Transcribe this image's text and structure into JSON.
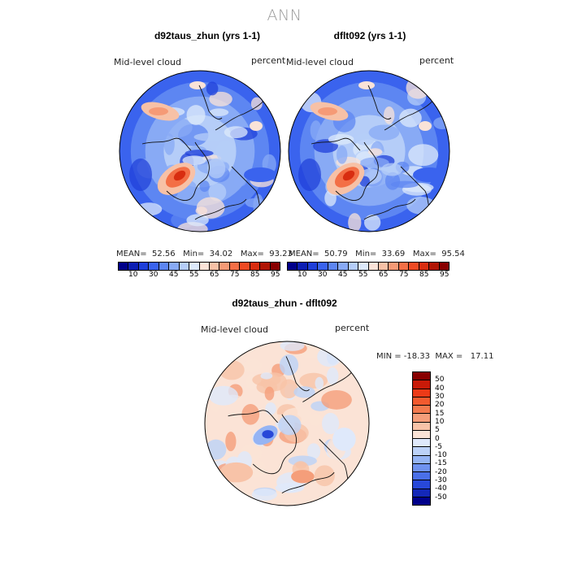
{
  "main_title": "ANN",
  "panels": [
    {
      "title": "d92taus_zhun (yrs 1-1)",
      "field": "Mid-level cloud",
      "units": "percent",
      "stats_text": "MEAN=  52.56   Min=  34.02   Max=  93.23",
      "mean": 52.56,
      "min": 34.02,
      "max": 93.23
    },
    {
      "title": "dflt092 (yrs 1-1)",
      "field": "Mid-level cloud",
      "units": "percent",
      "stats_text": "MEAN=  50.79   Min=  33.69   Max=  95.54",
      "mean": 50.79,
      "min": 33.69,
      "max": 95.54
    },
    {
      "title": "d92taus_zhun - dflt092",
      "field": "Mid-level cloud",
      "units": "percent",
      "stats_text": "MIN = -18.33  MAX =   17.11",
      "min": -18.33,
      "max": 17.11
    }
  ],
  "colorbar_top": {
    "colors": [
      "#00008a",
      "#0d1fb4",
      "#1f3fd9",
      "#3a63ee",
      "#5d86f2",
      "#88aaf5",
      "#b5cdf8",
      "#dde9fb",
      "#fbe3d8",
      "#f7c1a6",
      "#f59a76",
      "#f36f46",
      "#ee4a23",
      "#d82d10",
      "#b01505",
      "#880000"
    ],
    "tick_labels": [
      "10",
      "30",
      "45",
      "55",
      "65",
      "75",
      "85",
      "95"
    ]
  },
  "colorbar_diff": {
    "colors": [
      "#880000",
      "#c81a08",
      "#ec3a17",
      "#f25a2e",
      "#f37a4e",
      "#f59e7a",
      "#f8c3a8",
      "#fbe3d6",
      "#dfe9fb",
      "#bcd2f8",
      "#95b4f4",
      "#6f92f0",
      "#4a6fe8",
      "#2848d8",
      "#1428b8",
      "#00008a"
    ],
    "tick_labels": [
      "50",
      "40",
      "30",
      "20",
      "15",
      "10",
      "5",
      "0",
      "-5",
      "-10",
      "-15",
      "-20",
      "-30",
      "-40",
      "-50"
    ]
  }
}
